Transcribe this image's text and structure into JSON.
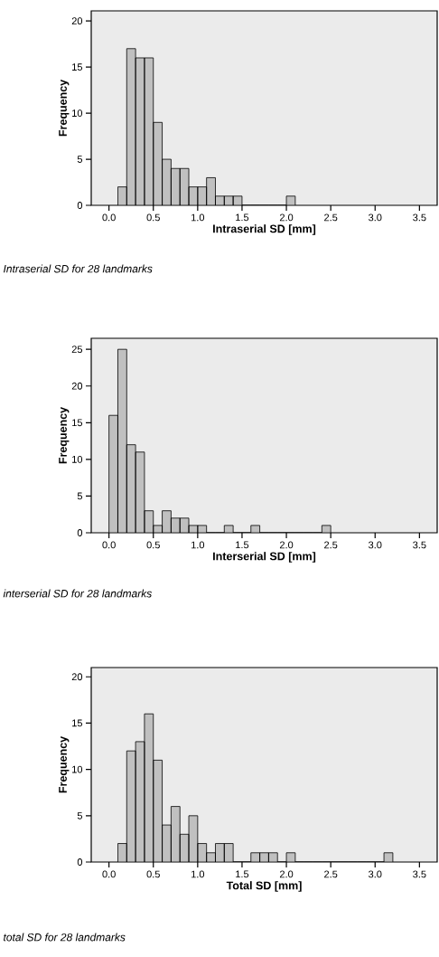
{
  "chart_data": [
    {
      "type": "histogram",
      "xlabel": "Intraserial SD [mm]",
      "ylabel": "Frequency",
      "annotations": [
        "Intraserial SD for 28 landmarks"
      ],
      "color": "#c0c0c0",
      "grid": false,
      "bins": [
        0.1,
        0.2,
        0.3,
        0.4,
        0.5,
        0.6,
        0.7,
        0.8,
        0.9,
        1.0,
        1.1,
        1.2,
        1.3,
        1.4,
        1.5,
        1.6,
        1.7,
        1.8,
        1.9,
        2.0,
        2.1
      ],
      "values": [
        2,
        17,
        16,
        16,
        9,
        5,
        4,
        4,
        2,
        2,
        3,
        1,
        1,
        1,
        0,
        0,
        0,
        0,
        0,
        1
      ],
      "xlim": [
        -0.2,
        3.7
      ],
      "ylim": [
        0,
        21.1
      ],
      "xticks": [
        {
          "value": 0,
          "label": "0.0"
        },
        0.5,
        {
          "value": 1,
          "label": "1.0"
        },
        1.5,
        {
          "value": 2,
          "label": "2.0"
        },
        2.5,
        {
          "value": 3,
          "label": "3.0"
        },
        3.5
      ],
      "yticks": [
        0,
        5,
        10,
        15,
        20
      ]
    },
    {
      "type": "histogram",
      "xlabel": "Interserial SD [mm]",
      "ylabel": "Frequency",
      "annotations": [
        "interserial SD for 28 landmarks"
      ],
      "color": "#c0c0c0",
      "grid": false,
      "bins": [
        0.0,
        0.1,
        0.2,
        0.3,
        0.4,
        0.5,
        0.6,
        0.7,
        0.8,
        0.9,
        1.0,
        1.1,
        1.2,
        1.3,
        1.4,
        1.5,
        1.6,
        1.7,
        1.8,
        1.9,
        2.0,
        2.1,
        2.2,
        2.3,
        2.4,
        2.5
      ],
      "values": [
        16,
        25,
        12,
        11,
        3,
        1,
        3,
        2,
        2,
        1,
        1,
        0,
        0,
        1,
        0,
        0,
        1,
        0,
        0,
        0,
        0,
        0,
        0,
        0,
        1
      ],
      "xlim": [
        -0.2,
        3.7
      ],
      "ylim": [
        0,
        26.5
      ],
      "xticks": [
        {
          "value": 0,
          "label": "0.0"
        },
        0.5,
        {
          "value": 1,
          "label": "1.0"
        },
        1.5,
        {
          "value": 2,
          "label": "2.0"
        },
        2.5,
        {
          "value": 3,
          "label": "3.0"
        },
        3.5
      ],
      "yticks": [
        0,
        5,
        10,
        15,
        20,
        25
      ]
    },
    {
      "type": "histogram",
      "xlabel": "Total SD [mm]",
      "ylabel": "Frequency",
      "annotations": [
        "total SD for 28 landmarks"
      ],
      "color": "#c0c0c0",
      "grid": false,
      "bins": [
        0.1,
        0.2,
        0.3,
        0.4,
        0.5,
        0.6,
        0.7,
        0.8,
        0.9,
        1.0,
        1.1,
        1.2,
        1.3,
        1.4,
        1.5,
        1.6,
        1.7,
        1.8,
        1.9,
        2.0,
        2.1,
        2.2,
        2.3,
        2.4,
        2.5,
        2.6,
        2.7,
        2.8,
        2.9,
        3.0,
        3.1,
        3.2
      ],
      "values": [
        2,
        12,
        13,
        16,
        11,
        4,
        6,
        3,
        5,
        2,
        1,
        2,
        2,
        0,
        0,
        1,
        1,
        1,
        0,
        1,
        0,
        0,
        0,
        0,
        0,
        0,
        0,
        0,
        0,
        0,
        1
      ],
      "xlim": [
        -0.2,
        3.7
      ],
      "ylim": [
        0,
        21.0
      ],
      "xticks": [
        {
          "value": 0,
          "label": "0.0"
        },
        0.5,
        {
          "value": 1,
          "label": "1.0"
        },
        1.5,
        {
          "value": 2,
          "label": "2.0"
        },
        2.5,
        {
          "value": 3,
          "label": "3.0"
        },
        3.5
      ],
      "yticks": [
        0,
        5,
        10,
        15,
        20
      ]
    }
  ]
}
